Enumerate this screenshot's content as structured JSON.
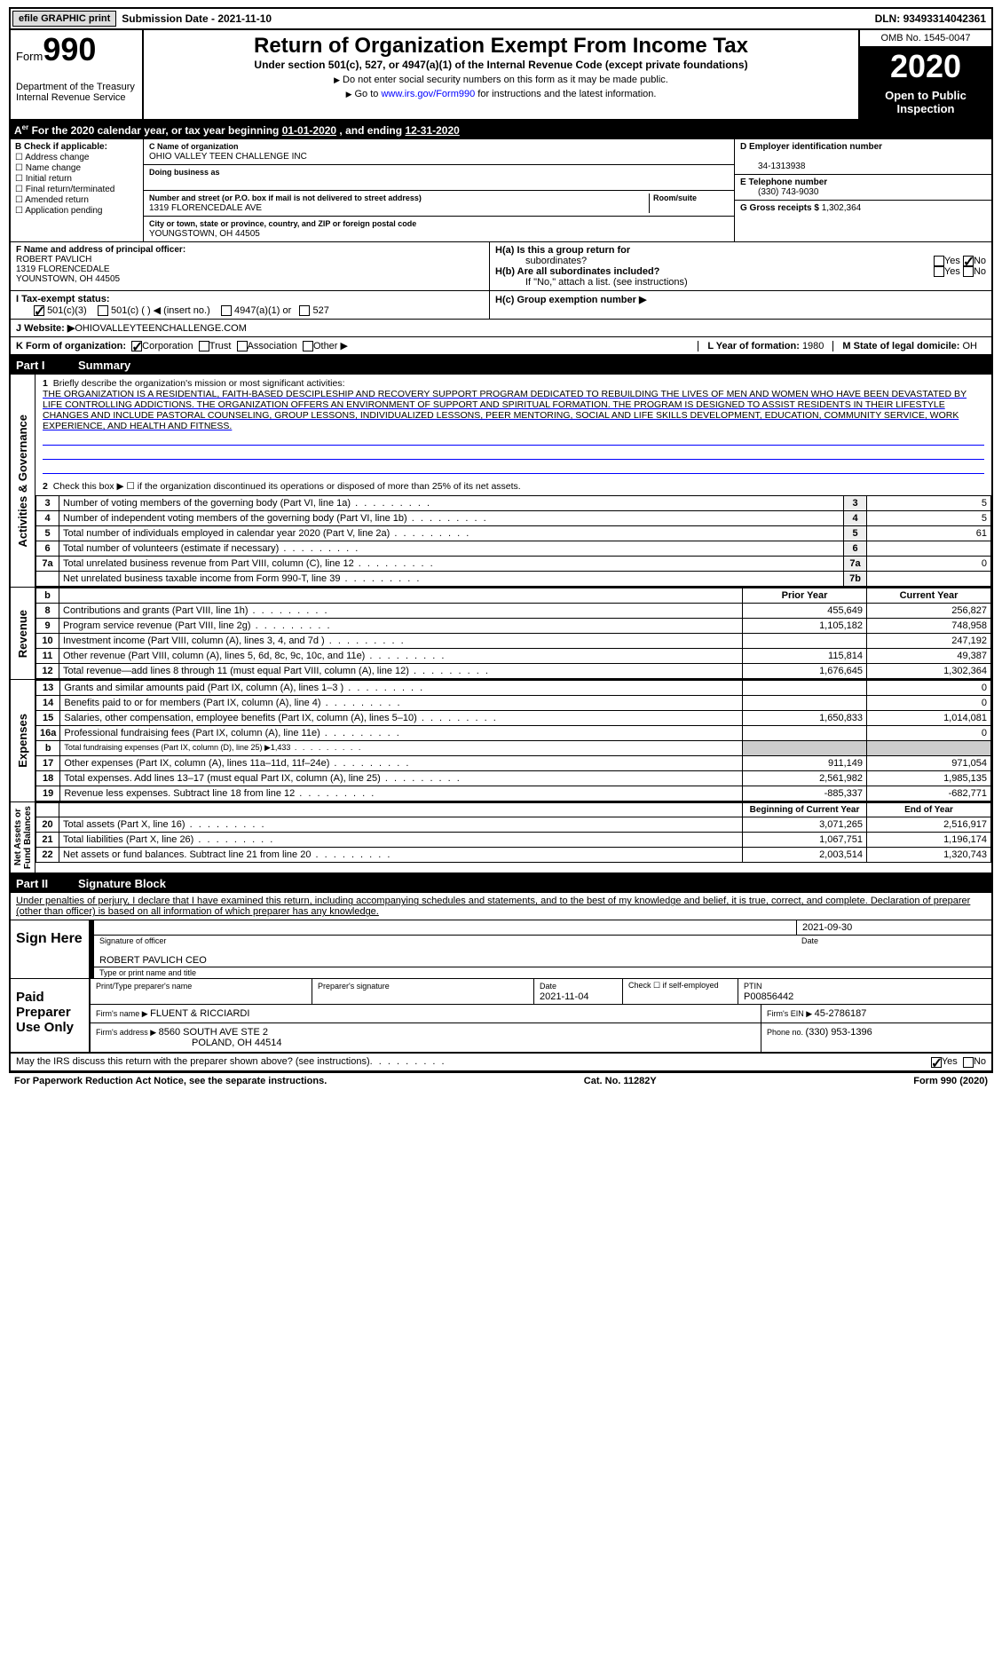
{
  "topbar": {
    "efile": "efile GRAPHIC print",
    "subdate_label": "Submission Date - ",
    "subdate": "2021-11-10",
    "dln_label": "DLN: ",
    "dln": "93493314042361"
  },
  "header": {
    "form_label": "Form",
    "form_number": "990",
    "dept": "Department of the Treasury\nInternal Revenue Service",
    "title": "Return of Organization Exempt From Income Tax",
    "subtitle": "Under section 501(c), 527, or 4947(a)(1) of the Internal Revenue Code (except private foundations)",
    "note1": "Do not enter social security numbers on this form as it may be made public.",
    "note2_pre": "Go to ",
    "note2_link": "www.irs.gov/Form990",
    "note2_post": " for instructions and the latest information.",
    "omb": "OMB No. 1545-0047",
    "year": "2020",
    "inspect": "Open to Public Inspection"
  },
  "period": {
    "text": "For the 2020 calendar year, or tax year beginning ",
    "begin": "01-01-2020",
    "mid": "   , and ending ",
    "end": "12-31-2020"
  },
  "boxB": {
    "label": "B Check if applicable:",
    "opts": [
      "Address change",
      "Name change",
      "Initial return",
      "Final return/terminated",
      "Amended return",
      "Application pending"
    ]
  },
  "boxC": {
    "name_label": "C Name of organization",
    "name": "OHIO VALLEY TEEN CHALLENGE INC",
    "dba_label": "Doing business as",
    "dba": "",
    "street_label": "Number and street (or P.O. box if mail is not delivered to street address)",
    "street": "1319 FLORENCEDALE AVE",
    "room_label": "Room/suite",
    "city_label": "City or town, state or province, country, and ZIP or foreign postal code",
    "city": "YOUNGSTOWN, OH  44505"
  },
  "boxD": {
    "ein_label": "D Employer identification number",
    "ein": "34-1313938",
    "phone_label": "E Telephone number",
    "phone": "(330) 743-9030",
    "gross_label": "G Gross receipts $ ",
    "gross": "1,302,364"
  },
  "boxF": {
    "label": "F  Name and address of principal officer:",
    "name": "ROBERT PAVLICH",
    "addr1": "1319 FLORENCEDALE",
    "addr2": "YOUNSTOWN, OH  44505"
  },
  "boxH": {
    "a_label": "H(a)  Is this a group return for",
    "a_label2": "subordinates?",
    "b_label": "H(b)  Are all subordinates included?",
    "b_note": "If \"No,\" attach a list. (see instructions)",
    "c_label": "H(c)  Group exemption number ▶"
  },
  "taxstatus": {
    "label": "I   Tax-exempt status:",
    "opts": [
      "501(c)(3)",
      "501(c) (  ) ◀ (insert no.)",
      "4947(a)(1) or",
      "527"
    ]
  },
  "website": {
    "label": "J   Website: ▶  ",
    "value": "OHIOVALLEYTEENCHALLENGE.COM"
  },
  "formorg": {
    "label": "K Form of organization:",
    "opts": [
      "Corporation",
      "Trust",
      "Association",
      "Other ▶"
    ],
    "L_label": "L Year of formation: ",
    "L_val": "1980",
    "M_label": "M State of legal domicile: ",
    "M_val": "OH"
  },
  "part1": {
    "num": "Part I",
    "title": "Summary"
  },
  "mission": {
    "q1_label": "1",
    "q1": "Briefly describe the organization's mission or most significant activities:",
    "text": "THE ORGANIZATION IS A RESIDENTIAL, FAITH-BASED DESCIPLESHIP AND RECOVERY SUPPORT PROGRAM DEDICATED TO REBUILDING THE LIVES OF MEN AND WOMEN WHO HAVE BEEN DEVASTATED BY LIFE CONTROLLING ADDICTIONS. THE ORGANIZATION OFFERS AN ENVIRONMENT OF SUPPORT AND SPIRITUAL FORMATION. THE PROGRAM IS DESIGNED TO ASSIST RESIDENTS IN THEIR LIFESTYLE CHANGES AND INCLUDE PASTORAL COUNSELING, GROUP LESSONS, INDIVIDUALIZED LESSONS, PEER MENTORING, SOCIAL AND LIFE SKILLS DEVELOPMENT, EDUCATION, COMMUNITY SERVICE, WORK EXPERIENCE, AND HEALTH AND FITNESS.",
    "q2": "Check this box ▶ ☐  if the organization discontinued its operations or disposed of more than 25% of its net assets."
  },
  "gov_lines": [
    {
      "n": "3",
      "d": "Number of voting members of the governing body (Part VI, line 1a)",
      "box": "3",
      "v": "5"
    },
    {
      "n": "4",
      "d": "Number of independent voting members of the governing body (Part VI, line 1b)",
      "box": "4",
      "v": "5"
    },
    {
      "n": "5",
      "d": "Total number of individuals employed in calendar year 2020 (Part V, line 2a)",
      "box": "5",
      "v": "61"
    },
    {
      "n": "6",
      "d": "Total number of volunteers (estimate if necessary)",
      "box": "6",
      "v": ""
    },
    {
      "n": "7a",
      "d": "Total unrelated business revenue from Part VIII, column (C), line 12",
      "box": "7a",
      "v": "0"
    },
    {
      "n": "",
      "d": "Net unrelated business taxable income from Form 990-T, line 39",
      "box": "7b",
      "v": ""
    }
  ],
  "rev_hdr": {
    "b": "b",
    "py": "Prior Year",
    "cy": "Current Year"
  },
  "rev_lines": [
    {
      "n": "8",
      "d": "Contributions and grants (Part VIII, line 1h)",
      "py": "455,649",
      "cy": "256,827"
    },
    {
      "n": "9",
      "d": "Program service revenue (Part VIII, line 2g)",
      "py": "1,105,182",
      "cy": "748,958"
    },
    {
      "n": "10",
      "d": "Investment income (Part VIII, column (A), lines 3, 4, and 7d )",
      "py": "",
      "cy": "247,192"
    },
    {
      "n": "11",
      "d": "Other revenue (Part VIII, column (A), lines 5, 6d, 8c, 9c, 10c, and 11e)",
      "py": "115,814",
      "cy": "49,387"
    },
    {
      "n": "12",
      "d": "Total revenue—add lines 8 through 11 (must equal Part VIII, column (A), line 12)",
      "py": "1,676,645",
      "cy": "1,302,364"
    }
  ],
  "exp_lines": [
    {
      "n": "13",
      "d": "Grants and similar amounts paid (Part IX, column (A), lines 1–3 )",
      "py": "",
      "cy": "0"
    },
    {
      "n": "14",
      "d": "Benefits paid to or for members (Part IX, column (A), line 4)",
      "py": "",
      "cy": "0"
    },
    {
      "n": "15",
      "d": "Salaries, other compensation, employee benefits (Part IX, column (A), lines 5–10)",
      "py": "1,650,833",
      "cy": "1,014,081"
    },
    {
      "n": "16a",
      "d": "Professional fundraising fees (Part IX, column (A), line 11e)",
      "py": "",
      "cy": "0"
    },
    {
      "n": "b",
      "d": "Total fundraising expenses (Part IX, column (D), line 25) ▶1,433",
      "py": "shade",
      "cy": "shade"
    },
    {
      "n": "17",
      "d": "Other expenses (Part IX, column (A), lines 11a–11d, 11f–24e)",
      "py": "911,149",
      "cy": "971,054"
    },
    {
      "n": "18",
      "d": "Total expenses. Add lines 13–17 (must equal Part IX, column (A), line 25)",
      "py": "2,561,982",
      "cy": "1,985,135"
    },
    {
      "n": "19",
      "d": "Revenue less expenses. Subtract line 18 from line 12",
      "py": "-885,337",
      "cy": "-682,771"
    }
  ],
  "na_hdr": {
    "py": "Beginning of Current Year",
    "cy": "End of Year"
  },
  "na_lines": [
    {
      "n": "20",
      "d": "Total assets (Part X, line 16)",
      "py": "3,071,265",
      "cy": "2,516,917"
    },
    {
      "n": "21",
      "d": "Total liabilities (Part X, line 26)",
      "py": "1,067,751",
      "cy": "1,196,174"
    },
    {
      "n": "22",
      "d": "Net assets or fund balances. Subtract line 21 from line 20",
      "py": "2,003,514",
      "cy": "1,320,743"
    }
  ],
  "vlabels": {
    "gov": "Activities & Governance",
    "rev": "Revenue",
    "exp": "Expenses",
    "na": "Net Assets or\nFund Balances"
  },
  "part2": {
    "num": "Part II",
    "title": "Signature Block"
  },
  "sig": {
    "perjury": "Under penalties of perjury, I declare that I have examined this return, including accompanying schedules and statements, and to the best of my knowledge and belief, it is true, correct, and complete. Declaration of preparer (other than officer) is based on all information of which preparer has any knowledge.",
    "sign_here": "Sign Here",
    "sig_officer": "Signature of officer",
    "sig_date": "2021-09-30",
    "date_label": "Date",
    "officer_name": "ROBERT PAVLICH  CEO",
    "type_name": "Type or print name and title",
    "paid": "Paid Preparer Use Only",
    "prep_name_label": "Print/Type preparer's name",
    "prep_sig_label": "Preparer's signature",
    "prep_date_label": "Date",
    "prep_date": "2021-11-04",
    "self_emp": "Check ☐ if self-employed",
    "ptin_label": "PTIN",
    "ptin": "P00856442",
    "firm_name_label": "Firm's name    ▶ ",
    "firm_name": "FLUENT & RICCIARDI",
    "firm_ein_label": "Firm's EIN ▶ ",
    "firm_ein": "45-2786187",
    "firm_addr_label": "Firm's address ▶ ",
    "firm_addr1": "8560 SOUTH AVE STE 2",
    "firm_addr2": "POLAND, OH  44514",
    "firm_phone_label": "Phone no. ",
    "firm_phone": "(330) 953-1396",
    "discuss": "May the IRS discuss this return with the preparer shown above? (see instructions)",
    "yes": "Yes",
    "no": "No"
  },
  "footer": {
    "left": "For Paperwork Reduction Act Notice, see the separate instructions.",
    "mid": "Cat. No. 11282Y",
    "right": "Form 990 (2020)"
  }
}
